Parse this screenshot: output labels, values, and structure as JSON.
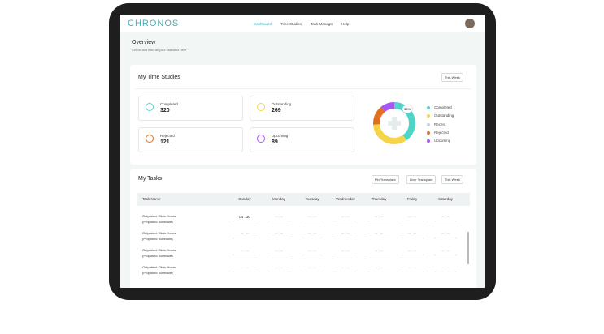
{
  "header": {
    "logo": "CHRONOS",
    "nav": [
      "Dashboard",
      "Time Studies",
      "Task Manager",
      "Help"
    ]
  },
  "overview": {
    "title": "Overview",
    "subtitle": "Check and filter all your statistics here"
  },
  "time_studies": {
    "title": "My Time Studies",
    "filter": "This Week",
    "stats": [
      {
        "label": "Completed",
        "value": 320,
        "color": "#4dd6c8"
      },
      {
        "label": "Outstanding",
        "value": 269,
        "color": "#f5d547"
      },
      {
        "label": "Rejected",
        "value": 121,
        "color": "#e0701f"
      },
      {
        "label": "Upcoming",
        "value": 89,
        "color": "#a855f7"
      }
    ],
    "donut_label": "38%",
    "legend": [
      {
        "label": "Completed",
        "color": "#4dd6c8"
      },
      {
        "label": "Outstanding",
        "color": "#f5d547"
      },
      {
        "label": "Recent",
        "color": "#c9d1d1"
      },
      {
        "label": "Rejected",
        "color": "#e0701f"
      },
      {
        "label": "Upcoming",
        "color": "#a855f7"
      }
    ]
  },
  "tasks": {
    "title": "My Tasks",
    "filters": [
      "Pin Transplant",
      "Liver Transplant",
      "This Week"
    ],
    "columns": [
      "Task Name",
      "Sunday",
      "Monday",
      "Tuesday",
      "Wednesday",
      "Thursday",
      "Friday",
      "Saturday"
    ],
    "rows": [
      {
        "name": "Outpatient Clinic Hours",
        "note": "(Proposed Schedule)",
        "times": [
          "04  :  30",
          "-- : --",
          "-- : --",
          "-- : --",
          "-- : --",
          "-- : --",
          "-- : --"
        ]
      },
      {
        "name": "Outpatient Clinic Hours",
        "note": "(Proposed Schedule)",
        "times": [
          "-- : --",
          "-- : --",
          "-- : --",
          "-- : --",
          "-- : --",
          "-- : --",
          "-- : --"
        ]
      },
      {
        "name": "Outpatient Clinic Hours",
        "note": "(Proposed Schedule)",
        "times": [
          "-- : --",
          "-- : --",
          "-- : --",
          "-- : --",
          "-- : --",
          "-- : --",
          "-- : --"
        ]
      },
      {
        "name": "Outpatient Clinic Hours",
        "note": "(Proposed Schedule)",
        "times": [
          "-- : --",
          "-- : --",
          "-- : --",
          "-- : --",
          "-- : --",
          "-- : --",
          "-- : --"
        ]
      }
    ]
  }
}
